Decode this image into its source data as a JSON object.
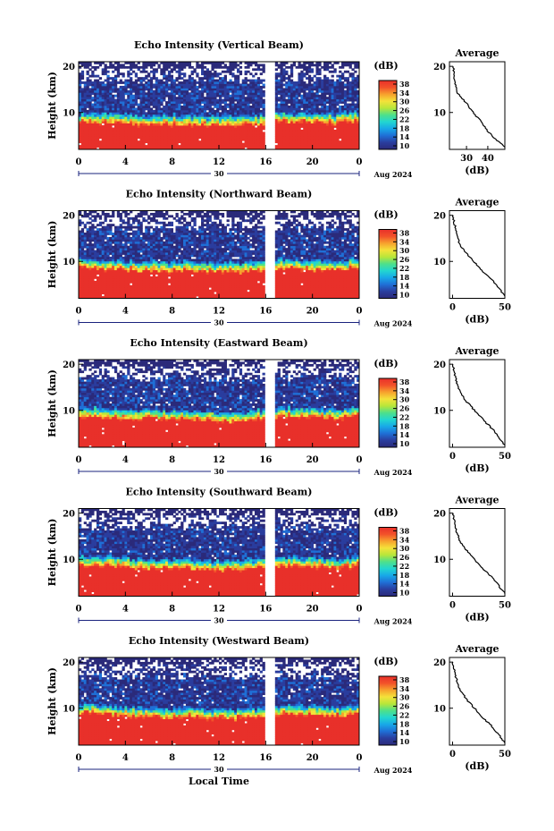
{
  "figure": {
    "bottom_label": "Local Time",
    "x_ticks": [
      "0",
      "4",
      "8",
      "12",
      "16",
      "20",
      "0"
    ],
    "day_label": "30",
    "month_label": "Aug 2024",
    "height_axis_label": "Height (km)",
    "height_ticks": [
      "20",
      "10"
    ],
    "colorbar_unit": "(dB)",
    "colorbar_ticks": [
      "38",
      "34",
      "30",
      "26",
      "22",
      "18",
      "14",
      "10"
    ],
    "average_title": "Average",
    "average_unit": "(dB)",
    "average_y_ticks": [
      "20",
      "10"
    ]
  },
  "chart_data": [
    {
      "type": "heatmap",
      "title": "Echo Intensity (Vertical Beam)",
      "xlabel": "",
      "ylabel": "Height (km)",
      "xlim": [
        0,
        24
      ],
      "ylim": [
        2,
        21
      ],
      "colorbar": {
        "label": "(dB)",
        "range": [
          10,
          38
        ]
      },
      "data_gap_hours": [
        15.9,
        16.8
      ],
      "boundary_height_km": [
        8.0,
        7.9,
        7.6,
        7.4,
        7.5,
        7.3,
        7.2,
        7.6,
        8.2,
        8.0,
        7.8,
        8.3
      ],
      "average_profile": {
        "xlabel": "(dB)",
        "x_ticks": [
          "30",
          "40"
        ],
        "xlim": [
          22,
          48
        ],
        "height_km": [
          20,
          18,
          16,
          14,
          12,
          10,
          8,
          6,
          4,
          2.5
        ],
        "values_db": [
          24,
          24,
          25,
          26,
          30,
          33,
          37,
          40,
          44,
          48
        ]
      }
    },
    {
      "type": "heatmap",
      "title": "Echo Intensity (Northward Beam)",
      "xlabel": "",
      "ylabel": "Height (km)",
      "xlim": [
        0,
        24
      ],
      "ylim": [
        2,
        21
      ],
      "colorbar": {
        "label": "(dB)",
        "range": [
          10,
          38
        ]
      },
      "data_gap_hours": [
        15.9,
        16.8
      ],
      "boundary_height_km": [
        8.8,
        8.6,
        8.2,
        8.0,
        8.1,
        7.9,
        7.8,
        8.2,
        8.8,
        8.5,
        8.3,
        8.7
      ],
      "average_profile": {
        "xlabel": "(dB)",
        "x_ticks": [
          "0",
          "50"
        ],
        "xlim": [
          -3,
          50
        ],
        "height_km": [
          20,
          18,
          16,
          14,
          12,
          10,
          8,
          6,
          4,
          2.5
        ],
        "values_db": [
          0,
          2,
          4,
          6,
          12,
          20,
          28,
          38,
          45,
          50
        ]
      }
    },
    {
      "type": "heatmap",
      "title": "Echo Intensity (Eastward Beam)",
      "xlabel": "",
      "ylabel": "Height (km)",
      "xlim": [
        0,
        24
      ],
      "ylim": [
        2,
        21
      ],
      "colorbar": {
        "label": "(dB)",
        "range": [
          10,
          38
        ]
      },
      "data_gap_hours": [
        15.9,
        16.8
      ],
      "boundary_height_km": [
        9.0,
        8.7,
        8.4,
        8.2,
        8.2,
        8.0,
        7.8,
        8.2,
        8.8,
        8.6,
        8.4,
        8.8
      ],
      "average_profile": {
        "xlabel": "(dB)",
        "x_ticks": [
          "0",
          "50"
        ],
        "xlim": [
          -3,
          50
        ],
        "height_km": [
          20,
          18,
          16,
          14,
          12,
          10,
          8,
          6,
          4,
          2.5
        ],
        "values_db": [
          0,
          2,
          4,
          7,
          13,
          21,
          29,
          38,
          45,
          50
        ]
      }
    },
    {
      "type": "heatmap",
      "title": "Echo Intensity (Southward Beam)",
      "xlabel": "",
      "ylabel": "Height (km)",
      "xlim": [
        0,
        24
      ],
      "ylim": [
        2,
        21
      ],
      "colorbar": {
        "label": "(dB)",
        "range": [
          10,
          38
        ]
      },
      "data_gap_hours": [
        15.9,
        16.8
      ],
      "boundary_height_km": [
        8.9,
        8.7,
        8.3,
        8.1,
        8.1,
        7.9,
        7.8,
        8.1,
        8.7,
        8.5,
        8.3,
        8.7
      ],
      "average_profile": {
        "xlabel": "(dB)",
        "x_ticks": [
          "0",
          "50"
        ],
        "xlim": [
          -3,
          50
        ],
        "height_km": [
          20,
          18,
          16,
          14,
          12,
          10,
          8,
          6,
          4,
          2.5
        ],
        "values_db": [
          0,
          2,
          4,
          7,
          13,
          21,
          29,
          38,
          45,
          50
        ]
      }
    },
    {
      "type": "heatmap",
      "title": "Echo Intensity (Westward Beam)",
      "xlabel": "Local Time",
      "ylabel": "Height (km)",
      "xlim": [
        0,
        24
      ],
      "ylim": [
        2,
        21
      ],
      "colorbar": {
        "label": "(dB)",
        "range": [
          10,
          38
        ]
      },
      "data_gap_hours": [
        15.9,
        16.8
      ],
      "boundary_height_km": [
        9.0,
        8.8,
        8.4,
        8.2,
        8.2,
        8.0,
        7.9,
        8.3,
        8.9,
        8.6,
        8.4,
        8.9
      ],
      "average_profile": {
        "xlabel": "(dB)",
        "x_ticks": [
          "0",
          "50"
        ],
        "xlim": [
          -3,
          50
        ],
        "height_km": [
          20,
          18,
          16,
          14,
          12,
          10,
          8,
          6,
          4,
          2.5
        ],
        "values_db": [
          0,
          2,
          4,
          7,
          13,
          21,
          29,
          38,
          45,
          50
        ]
      }
    }
  ],
  "colors": {
    "colormap": [
      "#2b2a7a",
      "#2a3d9e",
      "#1f6fd6",
      "#18a8e8",
      "#22d6d0",
      "#4ee08a",
      "#b8e63a",
      "#f4e23a",
      "#f7a12d",
      "#f2512a",
      "#e8302a"
    ],
    "background": "#ffffff",
    "axis": "#000000",
    "time_axis_accent": "#1a237e"
  }
}
